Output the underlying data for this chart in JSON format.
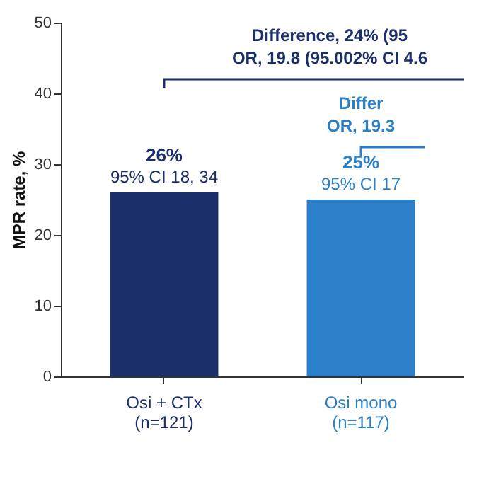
{
  "chart_data": {
    "type": "bar",
    "ylabel": "MPR rate, %",
    "categories": [
      "Osi + CTx\n(n=121)",
      "Osi mono\n(n=117)"
    ],
    "values": [
      26,
      25
    ],
    "colors": [
      "#1b2f6b",
      "#2a7fc8"
    ],
    "value_labels": [
      "26%",
      "25%"
    ],
    "ylim": [
      0,
      50
    ],
    "yticks": [
      0,
      10,
      20,
      30,
      40,
      50
    ],
    "annotations": [
      "Difference, 24% (95",
      "OR, 19.8 (95.002% CI 4.6",
      "Differ",
      "OR, 19.3",
      {
        "text": "95% CI 18, 34",
        "x": "Osi + CTx\n(n=121)",
        "y": 26
      },
      {
        "text": "95% CI 17",
        "x": "Osi mono\n(n=117)",
        "y": 25
      }
    ]
  }
}
